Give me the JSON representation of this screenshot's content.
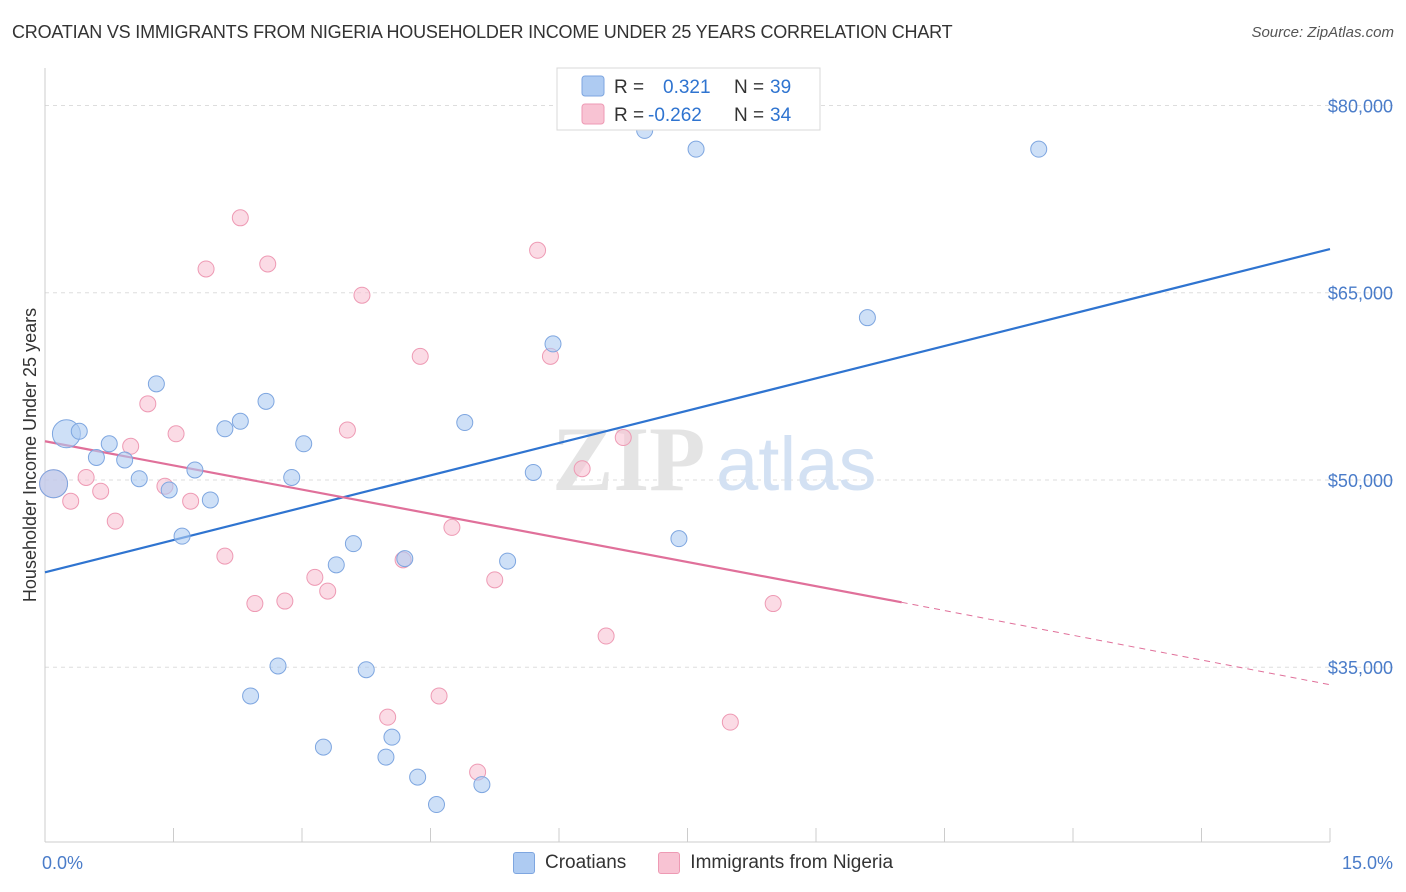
{
  "header": {
    "title": "CROATIAN VS IMMIGRANTS FROM NIGERIA HOUSEHOLDER INCOME UNDER 25 YEARS CORRELATION CHART",
    "source": "Source: ZipAtlas.com"
  },
  "watermark": {
    "zip": "ZIP",
    "atlas": "atlas"
  },
  "legend_box": {
    "rows": [
      {
        "r_label": "R =",
        "r_value": "0.321",
        "n_label": "N =",
        "n_value": "39"
      },
      {
        "r_label": "R =",
        "r_value": "-0.262",
        "n_label": "N =",
        "n_value": "34"
      }
    ]
  },
  "bottom_legend": {
    "items": [
      {
        "label": "Croatians"
      },
      {
        "label": "Immigrants from Nigeria"
      }
    ]
  },
  "colors": {
    "blue_fill": "#aecbf2",
    "blue_stroke": "#7ea6e0",
    "blue_line": "#2f74d0",
    "pink_fill": "#f8c3d3",
    "pink_stroke": "#ee9ab4",
    "pink_line": "#e0709a",
    "grid": "#dddddd",
    "tick_label": "#4a7cc9"
  },
  "chart_data": {
    "type": "scatter",
    "title": "CROATIAN VS IMMIGRANTS FROM NIGERIA HOUSEHOLDER INCOME UNDER 25 YEARS CORRELATION CHART",
    "xlabel": "",
    "ylabel": "Householder Income Under 25 years",
    "xlim": [
      0,
      15
    ],
    "ylim": [
      21000,
      83000
    ],
    "x_tick_labels": [
      "0.0%",
      "15.0%"
    ],
    "y_ticks": [
      35000,
      50000,
      65000,
      80000
    ],
    "y_tick_labels": [
      "$35,000",
      "$50,000",
      "$65,000",
      "$80,000"
    ],
    "grid": true,
    "series": [
      {
        "name": "Croatians",
        "r": 0.321,
        "n": 39,
        "trend": {
          "x0": 0,
          "y0": 42600,
          "x1": 15,
          "y1": 68500
        },
        "points": [
          {
            "x": 0.1,
            "y": 49700,
            "big": true
          },
          {
            "x": 0.25,
            "y": 53700,
            "big": true
          },
          {
            "x": 0.4,
            "y": 53900
          },
          {
            "x": 0.6,
            "y": 51800
          },
          {
            "x": 0.75,
            "y": 52900
          },
          {
            "x": 0.93,
            "y": 51600
          },
          {
            "x": 1.1,
            "y": 50100
          },
          {
            "x": 1.3,
            "y": 57700
          },
          {
            "x": 1.45,
            "y": 49200
          },
          {
            "x": 1.6,
            "y": 45500
          },
          {
            "x": 1.75,
            "y": 50800
          },
          {
            "x": 1.93,
            "y": 48400
          },
          {
            "x": 2.1,
            "y": 54100
          },
          {
            "x": 2.28,
            "y": 54700
          },
          {
            "x": 2.4,
            "y": 32700
          },
          {
            "x": 2.58,
            "y": 56300
          },
          {
            "x": 2.72,
            "y": 35100
          },
          {
            "x": 2.88,
            "y": 50200
          },
          {
            "x": 3.02,
            "y": 52900
          },
          {
            "x": 3.25,
            "y": 28600
          },
          {
            "x": 3.4,
            "y": 43200
          },
          {
            "x": 3.6,
            "y": 44900
          },
          {
            "x": 3.75,
            "y": 34800
          },
          {
            "x": 3.98,
            "y": 27800
          },
          {
            "x": 4.05,
            "y": 29400
          },
          {
            "x": 4.2,
            "y": 43700
          },
          {
            "x": 4.35,
            "y": 26200
          },
          {
            "x": 4.57,
            "y": 24000
          },
          {
            "x": 4.9,
            "y": 54600
          },
          {
            "x": 5.1,
            "y": 25600
          },
          {
            "x": 5.4,
            "y": 43500
          },
          {
            "x": 5.7,
            "y": 50600
          },
          {
            "x": 5.93,
            "y": 60900
          },
          {
            "x": 7.0,
            "y": 78000
          },
          {
            "x": 7.4,
            "y": 45300
          },
          {
            "x": 7.6,
            "y": 76500
          },
          {
            "x": 9.6,
            "y": 63000
          },
          {
            "x": 11.6,
            "y": 76500
          },
          {
            "x": 7.2,
            "y": 78800
          }
        ]
      },
      {
        "name": "Immigrants from Nigeria",
        "r": -0.262,
        "n": 34,
        "trend": {
          "x0": 0,
          "y0": 53100,
          "x1": 10.0,
          "y1": 40200,
          "dash_x1": 15,
          "dash_y1": 33600
        },
        "points": [
          {
            "x": 0.1,
            "y": 49700,
            "big": true
          },
          {
            "x": 0.3,
            "y": 48300
          },
          {
            "x": 0.48,
            "y": 50200
          },
          {
            "x": 0.65,
            "y": 49100
          },
          {
            "x": 0.82,
            "y": 46700
          },
          {
            "x": 1.0,
            "y": 52700
          },
          {
            "x": 1.2,
            "y": 56100
          },
          {
            "x": 1.4,
            "y": 49500
          },
          {
            "x": 1.53,
            "y": 53700
          },
          {
            "x": 1.7,
            "y": 48300
          },
          {
            "x": 1.88,
            "y": 66900
          },
          {
            "x": 2.1,
            "y": 43900
          },
          {
            "x": 2.28,
            "y": 71000
          },
          {
            "x": 2.45,
            "y": 40100
          },
          {
            "x": 2.6,
            "y": 67300
          },
          {
            "x": 2.8,
            "y": 40300
          },
          {
            "x": 3.15,
            "y": 42200
          },
          {
            "x": 3.3,
            "y": 41100
          },
          {
            "x": 3.53,
            "y": 54000
          },
          {
            "x": 3.7,
            "y": 64800
          },
          {
            "x": 4.0,
            "y": 31000
          },
          {
            "x": 4.18,
            "y": 43600
          },
          {
            "x": 4.38,
            "y": 59900
          },
          {
            "x": 4.6,
            "y": 32700
          },
          {
            "x": 4.75,
            "y": 46200
          },
          {
            "x": 5.05,
            "y": 26600
          },
          {
            "x": 5.25,
            "y": 42000
          },
          {
            "x": 5.75,
            "y": 68400
          },
          {
            "x": 5.9,
            "y": 59900
          },
          {
            "x": 6.27,
            "y": 50900
          },
          {
            "x": 6.55,
            "y": 37500
          },
          {
            "x": 6.75,
            "y": 53400
          },
          {
            "x": 8.0,
            "y": 30600
          },
          {
            "x": 8.5,
            "y": 40100
          }
        ]
      }
    ]
  }
}
